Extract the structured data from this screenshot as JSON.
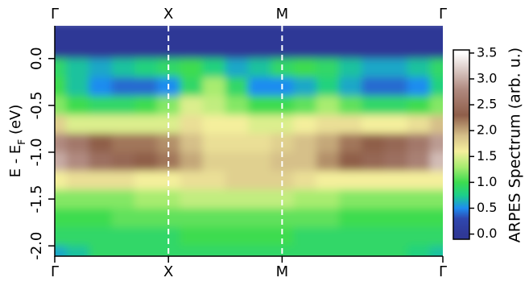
{
  "chart_data": {
    "type": "heatmap",
    "x": [
      0,
      0.2,
      0.4,
      0.6,
      0.8,
      1.0,
      1.2,
      1.4,
      1.6,
      1.8,
      2.0,
      2.2,
      2.4,
      2.6,
      2.8,
      3.0,
      3.2,
      3.4
    ],
    "y": [
      0.3,
      0.1,
      -0.1,
      -0.3,
      -0.5,
      -0.7,
      -0.9,
      -1.1,
      -1.3,
      -1.5,
      -1.7,
      -1.9,
      -2.1
    ],
    "z": [
      [
        0,
        0,
        0,
        0,
        0,
        0,
        0,
        0,
        0,
        0,
        0,
        0,
        0,
        0,
        0,
        0,
        0,
        0
      ],
      [
        0,
        0,
        0,
        0,
        0,
        0,
        0,
        0,
        0,
        0,
        0,
        0,
        0,
        0,
        0,
        0,
        0,
        0
      ],
      [
        0.9,
        0.7,
        0.6,
        0.7,
        0.8,
        0.9,
        1.0,
        0.8,
        0.6,
        0.7,
        0.9,
        1.0,
        0.9,
        0.7,
        0.6,
        0.6,
        0.7,
        0.9
      ],
      [
        1.0,
        0.7,
        0.5,
        0.4,
        0.4,
        0.5,
        0.9,
        1.3,
        0.9,
        0.5,
        0.5,
        0.6,
        0.8,
        0.6,
        0.4,
        0.4,
        0.5,
        0.8
      ],
      [
        1.2,
        1.0,
        0.9,
        0.9,
        1.0,
        1.2,
        1.5,
        1.4,
        1.2,
        1.0,
        1.0,
        1.1,
        1.3,
        1.1,
        0.9,
        0.9,
        1.0,
        1.2
      ],
      [
        1.8,
        1.5,
        1.5,
        1.5,
        1.5,
        1.5,
        1.7,
        1.6,
        1.6,
        1.5,
        1.5,
        1.6,
        1.7,
        1.7,
        1.6,
        1.6,
        1.7,
        1.9
      ],
      [
        2.8,
        2.6,
        2.3,
        2.2,
        2.2,
        2.1,
        1.9,
        1.7,
        1.7,
        1.7,
        1.8,
        1.9,
        2.0,
        2.2,
        2.3,
        2.4,
        2.6,
        2.9
      ],
      [
        3.0,
        2.8,
        2.5,
        2.4,
        2.3,
        2.2,
        2.0,
        1.8,
        1.8,
        1.8,
        1.9,
        1.9,
        2.1,
        2.3,
        2.4,
        2.5,
        2.7,
        3.1
      ],
      [
        1.6,
        1.7,
        1.7,
        1.7,
        1.6,
        1.6,
        1.7,
        1.7,
        1.8,
        1.8,
        1.8,
        1.7,
        1.6,
        1.6,
        1.6,
        1.6,
        1.6,
        1.6
      ],
      [
        1.2,
        1.2,
        1.2,
        1.2,
        1.3,
        1.3,
        1.4,
        1.4,
        1.4,
        1.4,
        1.4,
        1.3,
        1.3,
        1.2,
        1.2,
        1.2,
        1.2,
        1.2
      ],
      [
        1.0,
        1.0,
        1.0,
        1.1,
        1.1,
        1.1,
        1.1,
        1.1,
        1.1,
        1.1,
        1.1,
        1.1,
        1.1,
        1.0,
        1.0,
        1.0,
        1.0,
        1.0
      ],
      [
        0.9,
        0.9,
        0.9,
        0.9,
        0.9,
        0.9,
        1.0,
        1.0,
        1.0,
        1.0,
        1.0,
        0.9,
        0.9,
        0.9,
        0.9,
        0.9,
        0.9,
        0.9
      ],
      [
        0.6,
        0.7,
        0.9,
        0.9,
        0.9,
        0.9,
        0.9,
        0.9,
        0.9,
        0.9,
        0.9,
        0.9,
        0.9,
        0.9,
        0.9,
        0.9,
        0.8,
        0.7
      ]
    ],
    "xlim": [
      0,
      3.414
    ],
    "xticks": [
      {
        "value": 0,
        "label": "Γ"
      },
      {
        "value": 1,
        "label": "X"
      },
      {
        "value": 2,
        "label": "M"
      },
      {
        "value": 3.414,
        "label": "Γ"
      }
    ],
    "ylim": [
      -2.11,
      0.35
    ],
    "yticks": [
      {
        "value": -2,
        "label": "-2.0"
      },
      {
        "value": -1.5,
        "label": "-1.5"
      },
      {
        "value": -1,
        "label": "-1.0"
      },
      {
        "value": -0.5,
        "label": "-0.5"
      },
      {
        "value": 0,
        "label": "0.0"
      }
    ],
    "ylabel": [
      "E - E",
      "F",
      " (eV)"
    ],
    "colorbar_label": "ARPES Spectrum (arb. u.)",
    "clim": [
      -0.1,
      3.56
    ],
    "cticks": [
      {
        "value": 0,
        "label": "0.0"
      },
      {
        "value": 0.5,
        "label": "0.5"
      },
      {
        "value": 1,
        "label": "1.0"
      },
      {
        "value": 1.5,
        "label": "1.5"
      },
      {
        "value": 2,
        "label": "2.0"
      },
      {
        "value": 2.5,
        "label": "2.5"
      },
      {
        "value": 3,
        "label": "3.0"
      },
      {
        "value": 3.5,
        "label": "3.5"
      }
    ],
    "colorscale": [
      [
        0,
        "#2f3896"
      ],
      [
        0.3,
        "#2f48b0"
      ],
      [
        0.5,
        "#1e8cf0"
      ],
      [
        0.75,
        "#1ccf8a"
      ],
      [
        1.0,
        "#3ddc50"
      ],
      [
        1.3,
        "#a8ec70"
      ],
      [
        1.6,
        "#f4ef9c"
      ],
      [
        1.9,
        "#d6c089"
      ],
      [
        2.3,
        "#8f5e4a"
      ],
      [
        2.8,
        "#b08a80"
      ],
      [
        3.5,
        "#ffffff"
      ]
    ],
    "divider_color": "#ffffff"
  }
}
